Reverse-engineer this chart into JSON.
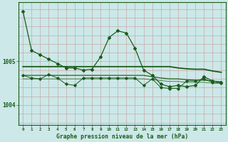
{
  "title": "Graphe pression niveau de la mer (hPa)",
  "background_color": "#cce8e8",
  "grid_color_v": "#c8a8a8",
  "grid_color_h": "#c8a8a8",
  "line_color": "#1a5c1a",
  "x_labels": [
    "0",
    "1",
    "2",
    "3",
    "4",
    "5",
    "6",
    "7",
    "8",
    "9",
    "10",
    "11",
    "12",
    "13",
    "14",
    "15",
    "16",
    "17",
    "18",
    "19",
    "20",
    "21",
    "22",
    "23"
  ],
  "ylim": [
    1003.55,
    1006.35
  ],
  "yticks": [
    1004,
    1005
  ],
  "main_series": [
    1006.15,
    1005.25,
    1005.15,
    1005.05,
    1004.95,
    1004.85,
    1004.85,
    1004.8,
    1004.82,
    1005.1,
    1005.55,
    1005.7,
    1005.65,
    1005.3,
    1004.8,
    1004.68,
    1004.48,
    1004.42,
    1004.45,
    1004.42,
    1004.45,
    1004.65,
    1004.55,
    1004.52
  ],
  "smooth_line1": [
    1004.88,
    1004.88,
    1004.88,
    1004.88,
    1004.88,
    1004.88,
    1004.88,
    1004.88,
    1004.88,
    1004.88,
    1004.88,
    1004.88,
    1004.88,
    1004.88,
    1004.88,
    1004.88,
    1004.88,
    1004.88,
    1004.85,
    1004.83,
    1004.82,
    1004.82,
    1004.78,
    1004.75
  ],
  "smooth_line2": [
    1004.68,
    1004.68,
    1004.68,
    1004.68,
    1004.68,
    1004.68,
    1004.68,
    1004.68,
    1004.68,
    1004.68,
    1004.68,
    1004.68,
    1004.68,
    1004.68,
    1004.68,
    1004.65,
    1004.62,
    1004.6,
    1004.6,
    1004.58,
    1004.57,
    1004.57,
    1004.55,
    1004.53
  ],
  "smooth_line3": [
    1004.6,
    1004.6,
    1004.6,
    1004.6,
    1004.6,
    1004.6,
    1004.6,
    1004.6,
    1004.6,
    1004.6,
    1004.6,
    1004.6,
    1004.6,
    1004.6,
    1004.6,
    1004.58,
    1004.56,
    1004.54,
    1004.54,
    1004.52,
    1004.52,
    1004.52,
    1004.5,
    1004.5
  ],
  "zigzag_series": [
    1004.68,
    1004.62,
    1004.6,
    1004.7,
    1004.62,
    1004.48,
    1004.45,
    1004.62,
    1004.62,
    1004.62,
    1004.62,
    1004.62,
    1004.62,
    1004.62,
    1004.45,
    1004.6,
    1004.4,
    1004.38,
    1004.38,
    1004.55,
    1004.55,
    1004.6,
    1004.52,
    1004.5
  ]
}
